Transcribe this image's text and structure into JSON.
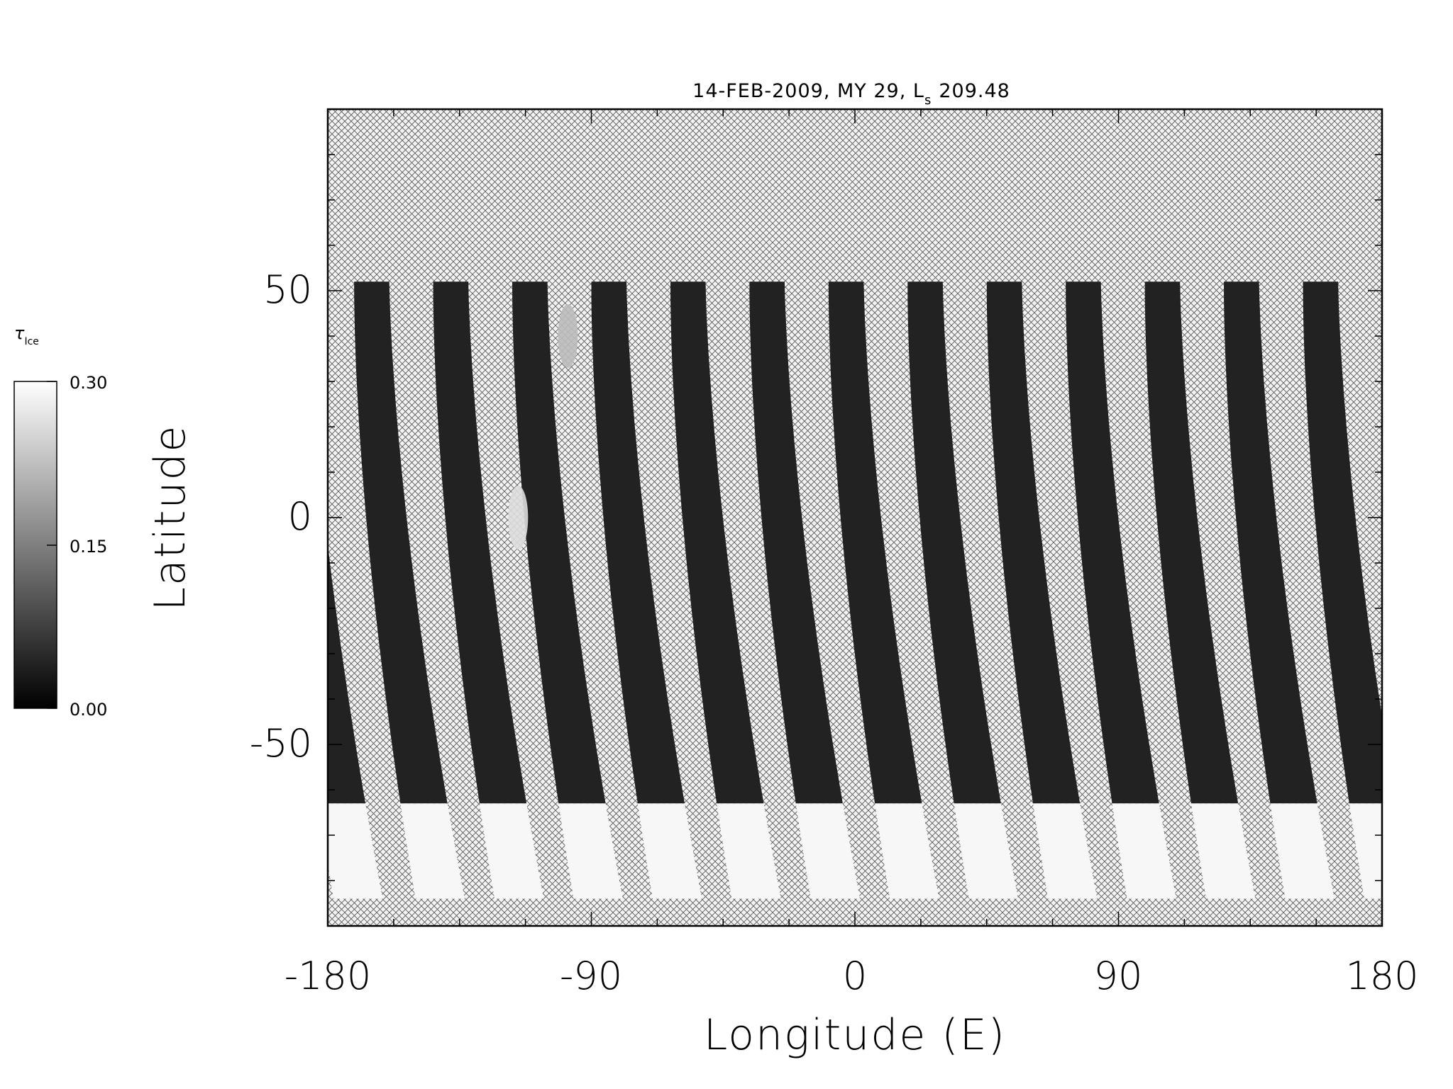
{
  "chart_data": {
    "type": "heatmap",
    "title_main": "14-FEB-2009, MY 29,  L",
    "title_sub": "s",
    "title_value": "209.48",
    "xlabel": "Longitude (E)",
    "ylabel": "Latitude",
    "xlim": [
      -180,
      180
    ],
    "ylim": [
      -90,
      90
    ],
    "x_ticks": [
      "-180",
      "-90",
      "0",
      "90",
      "180"
    ],
    "y_ticks": [
      "50",
      "0",
      "-50"
    ],
    "grid": false,
    "no_data_pattern": "crosshatch",
    "colorscale": "grayscale",
    "colorbar": {
      "label_main": "τ",
      "label_sub": "Ice",
      "range": [
        0.0,
        0.3
      ],
      "tick_labels": [
        "0.30",
        "0.15",
        "0.00"
      ],
      "tick_values": [
        0.3,
        0.15,
        0.0
      ],
      "low_color": "#000000",
      "high_color": "#ffffff",
      "placement": "left"
    },
    "swaths": {
      "count": 14,
      "lat_top": 52,
      "lat_bottom": -90,
      "center_lon_at_top": [
        -193,
        -165,
        -138,
        -111,
        -84,
        -57,
        -30,
        -3,
        24,
        51,
        78,
        105,
        132,
        159
      ],
      "lon_drift_to_south": 25,
      "width_deg_north": 12,
      "width_deg_south": 17,
      "typical_tau_midlat": 0.04,
      "typical_tau_south_polar": 0.29,
      "south_polar_bright_from_lat": -63
    },
    "features": [
      {
        "lon": -115,
        "lat": 0,
        "tau": 0.26,
        "desc": "bright patch"
      },
      {
        "lon": -98,
        "lat": 40,
        "tau": 0.22,
        "desc": "bright patch"
      }
    ]
  }
}
